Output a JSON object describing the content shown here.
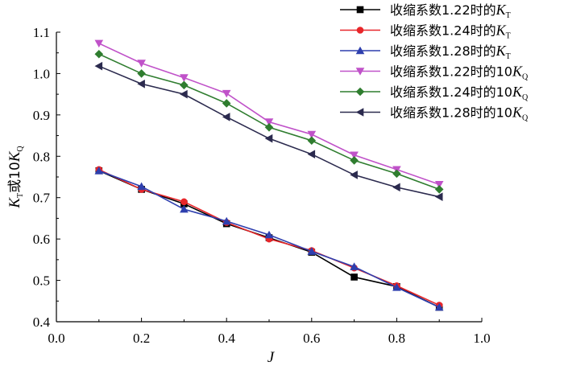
{
  "chart_data": {
    "type": "line",
    "x": [
      0.1,
      0.2,
      0.3,
      0.4,
      0.5,
      0.6,
      0.7,
      0.8,
      0.9
    ],
    "xlabel": "J",
    "ylabel": "KT或10KQ",
    "xlim": [
      0.0,
      1.0
    ],
    "ylim": [
      0.4,
      1.1
    ],
    "xticks": [
      "0.0",
      "0.2",
      "0.4",
      "0.6",
      "0.8",
      "1.0"
    ],
    "yticks": [
      "0.4",
      "0.5",
      "0.6",
      "0.7",
      "0.8",
      "0.9",
      "1.0",
      "1.1"
    ],
    "grid": false,
    "legend": "top-right",
    "series": [
      {
        "name": "收缩系数1.22时的KT",
        "color": "#000000",
        "marker": "square",
        "values": [
          0.765,
          0.72,
          0.685,
          0.637,
          0.603,
          0.568,
          0.508,
          0.485,
          0.435
        ]
      },
      {
        "name": "收缩系数1.24时的KT",
        "color": "#e8262a",
        "marker": "circle",
        "values": [
          0.768,
          0.72,
          0.69,
          0.64,
          0.6,
          0.572,
          0.53,
          0.487,
          0.44
        ]
      },
      {
        "name": "收缩系数1.28时的KT",
        "color": "#2e3fae",
        "marker": "triangle-up",
        "values": [
          0.765,
          0.727,
          0.672,
          0.643,
          0.61,
          0.57,
          0.533,
          0.483,
          0.435
        ]
      },
      {
        "name": "收缩系数1.22时的10KQ",
        "color": "#c052c9",
        "marker": "triangle-down",
        "values": [
          1.073,
          1.025,
          0.99,
          0.952,
          0.883,
          0.853,
          0.803,
          0.768,
          0.732
        ]
      },
      {
        "name": "收缩系数1.24时的10KQ",
        "color": "#2f7d2f",
        "marker": "diamond",
        "values": [
          1.047,
          1.0,
          0.972,
          0.928,
          0.87,
          0.838,
          0.79,
          0.758,
          0.72
        ]
      },
      {
        "name": "收缩系数1.28时的10KQ",
        "color": "#2b2a4e",
        "marker": "triangle-left",
        "values": [
          1.018,
          0.975,
          0.95,
          0.895,
          0.843,
          0.805,
          0.755,
          0.725,
          0.702
        ]
      }
    ],
    "legend_entries": [
      {
        "prefix": "收缩系数1.22时的",
        "sym": "K",
        "sub": "T"
      },
      {
        "prefix": "收缩系数1.24时的",
        "sym": "K",
        "sub": "T"
      },
      {
        "prefix": "收缩系数1.28时的",
        "sym": "K",
        "sub": "T"
      },
      {
        "prefix": "收缩系数1.22时的10",
        "sym": "K",
        "sub": "Q"
      },
      {
        "prefix": "收缩系数1.24时的10",
        "sym": "K",
        "sub": "Q"
      },
      {
        "prefix": "收缩系数1.28时的10",
        "sym": "K",
        "sub": "Q"
      }
    ],
    "ylabel_parts": {
      "sym1": "K",
      "sub1": "T",
      "mid": "或10",
      "sym2": "K",
      "sub2": "Q"
    }
  }
}
